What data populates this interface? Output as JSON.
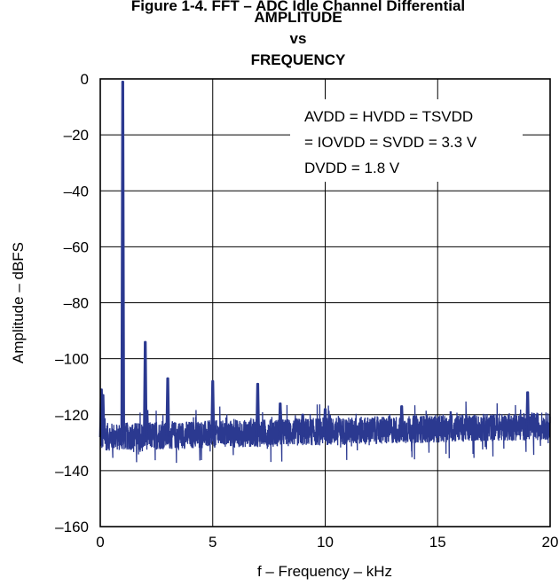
{
  "chart_data": {
    "type": "line",
    "title_lines": [
      "Figure 1-4. FFT – ADC Idle Channel Differential",
      "AMPLITUDE",
      "vs",
      "FREQUENCY"
    ],
    "xlabel": "f – Frequency – kHz",
    "ylabel": "Amplitude – dBFS",
    "xlim": [
      0,
      20
    ],
    "ylim": [
      -160,
      0
    ],
    "x_ticks": [
      "0",
      "5",
      "10",
      "15",
      "20"
    ],
    "y_ticks": [
      "0",
      "–20",
      "–40",
      "–60",
      "–80",
      "–100",
      "–120",
      "–140",
      "–160"
    ],
    "grid": true,
    "line_color": "#2b3990",
    "annotation_lines": [
      "AVDD = HVDD = TSVDD",
      "= IOVDD = SVDD = 3.3 V",
      "DVDD = 1.8 V"
    ],
    "noise_floor_db": -128,
    "noise_floor_end_db": -124,
    "series": [
      {
        "peaks": [
          {
            "x": 0.05,
            "y": -111
          },
          {
            "x": 0.12,
            "y": -113
          },
          {
            "x": 1.0,
            "y": -1
          },
          {
            "x": 2.0,
            "y": -94
          },
          {
            "x": 3.0,
            "y": -107
          },
          {
            "x": 5.0,
            "y": -108
          },
          {
            "x": 7.0,
            "y": -109
          },
          {
            "x": 8.0,
            "y": -116
          },
          {
            "x": 9.0,
            "y": -120
          },
          {
            "x": 10.0,
            "y": -118
          },
          {
            "x": 13.4,
            "y": -117
          },
          {
            "x": 19.0,
            "y": -112
          }
        ]
      }
    ]
  }
}
